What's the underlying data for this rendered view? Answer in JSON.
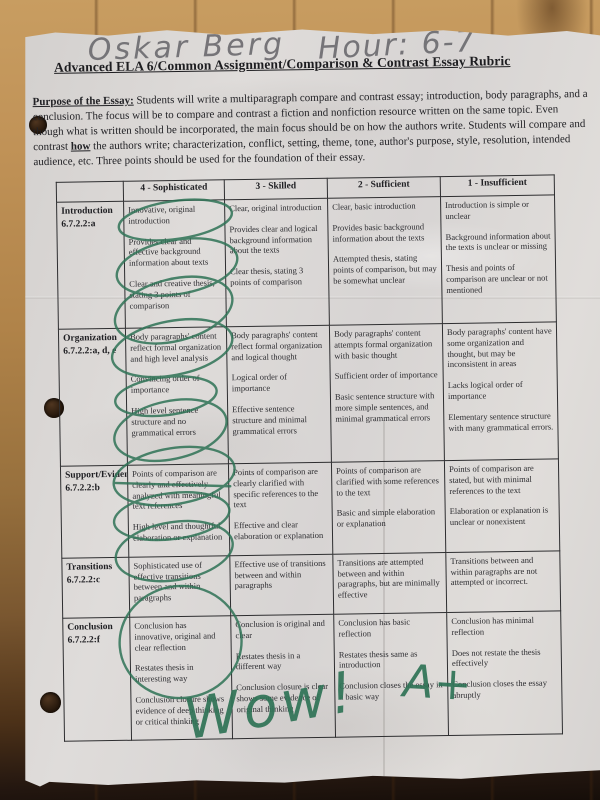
{
  "photo": {
    "handwriting": {
      "student_name": "Oskar Berg",
      "hour_label": "Hour: 6-7",
      "teacher_comment": "Wow!",
      "grade": "A+"
    },
    "colors": {
      "annotation_green": "#2f7356",
      "pencil_gray": "#6d6c70"
    }
  },
  "document": {
    "title": "Advanced ELA 6/Common Assignment/Comparison & Contrast Essay Rubric",
    "purpose": {
      "label": "Purpose of the Essay:",
      "before_how": " Students will write a multiparagraph compare and contrast essay; introduction, body paragraphs, and a conclusion. The focus will be to compare and contrast a fiction and nonfiction resource written on the same topic. Even though what is written should be incorporated, the main focus should be on how the authors write. Students will compare and contrast ",
      "emphasized_word": "how",
      "after_how": " the authors write; characterization, conflict, setting, theme, tone, author's purpose, style, resolution, intended audience, etc. Three points should be used for the foundation of their essay."
    },
    "rubric": {
      "headers": [
        "4 - Sophisticated",
        "3 - Skilled",
        "2 - Sufficient",
        "1 - Insufficient"
      ],
      "rows": [
        {
          "criterion": "Introduction",
          "code": "6.7.2.2:a",
          "levels": [
            [
              "Innovative, original introduction",
              "Provides clear and effective background information about texts",
              "Clear and creative thesis, stating 3 points of comparison"
            ],
            [
              "Clear, original introduction",
              "Provides clear and logical background information about the texts",
              "Clear thesis, stating 3 points of comparison"
            ],
            [
              "Clear, basic introduction",
              "Provides basic background information about the texts",
              "Attempted thesis, stating points of comparison, but may be somewhat unclear"
            ],
            [
              "Introduction is simple or unclear",
              "Background information about the texts is unclear or missing",
              "Thesis and points of comparison are unclear or not mentioned"
            ]
          ]
        },
        {
          "criterion": "Organization",
          "code": "6.7.2.2:a, d, e",
          "levels": [
            [
              "Body paragraphs' content reflect formal organization and high level analysis",
              "Convincing order of importance",
              "High level sentence structure and no grammatical errors"
            ],
            [
              "Body paragraphs' content reflect formal organization and logical thought",
              "Logical order of importance",
              "Effective sentence structure and minimal grammatical errors"
            ],
            [
              "Body paragraphs' content attempts formal organization with basic thought",
              "Sufficient order of importance",
              "Basic sentence structure with more simple sentences, and minimal grammatical errors"
            ],
            [
              "Body paragraphs' content have some organization and thought, but may be inconsistent in areas",
              "Lacks logical order of importance",
              "Elementary sentence structure with many grammatical errors."
            ]
          ]
        },
        {
          "criterion": "Support/Evidence",
          "code": "6.7.2.2:b",
          "levels": [
            [
              "Points of comparison are clearly and effectively analyzed with meaningful text references",
              "High level and thoughtful elaboration or explanation"
            ],
            [
              "Points of comparison are clearly clarified with specific references to the text",
              "Effective and clear elaboration or explanation"
            ],
            [
              "Points of comparison are clarified with some references to the text",
              "Basic and simple elaboration or explanation"
            ],
            [
              "Points of comparison are stated, but with minimal references to the text",
              "Elaboration or explanation is unclear or nonexistent"
            ]
          ]
        },
        {
          "criterion": "Transitions",
          "code": "6.7.2.2:c",
          "levels": [
            [
              "Sophisticated use of effective transitions between and within paragraphs"
            ],
            [
              "Effective use of transitions between and within paragraphs"
            ],
            [
              "Transitions are attempted between and within paragraphs, but are minimally effective"
            ],
            [
              "Transitions between and within paragraphs are not attempted or incorrect."
            ]
          ]
        },
        {
          "criterion": "Conclusion",
          "code": "6.7.2.2:f",
          "levels": [
            [
              "Conclusion has innovative, original and clear reflection",
              "Restates thesis in interesting way",
              "Conclusion closure shows evidence of deep thinking or critical thinking"
            ],
            [
              "Conclusion is original and clear",
              "Restates thesis in a different way",
              "Conclusion closure is clear shows some evidence of original thinking"
            ],
            [
              "Conclusion has basic reflection",
              "Restates thesis same as introduction",
              "Conclusion closes the essay in a basic way"
            ],
            [
              "Conclusion has minimal reflection",
              "Does not restate the thesis effectively",
              "Conclusion closes the essay abruptly"
            ]
          ]
        }
      ]
    }
  }
}
